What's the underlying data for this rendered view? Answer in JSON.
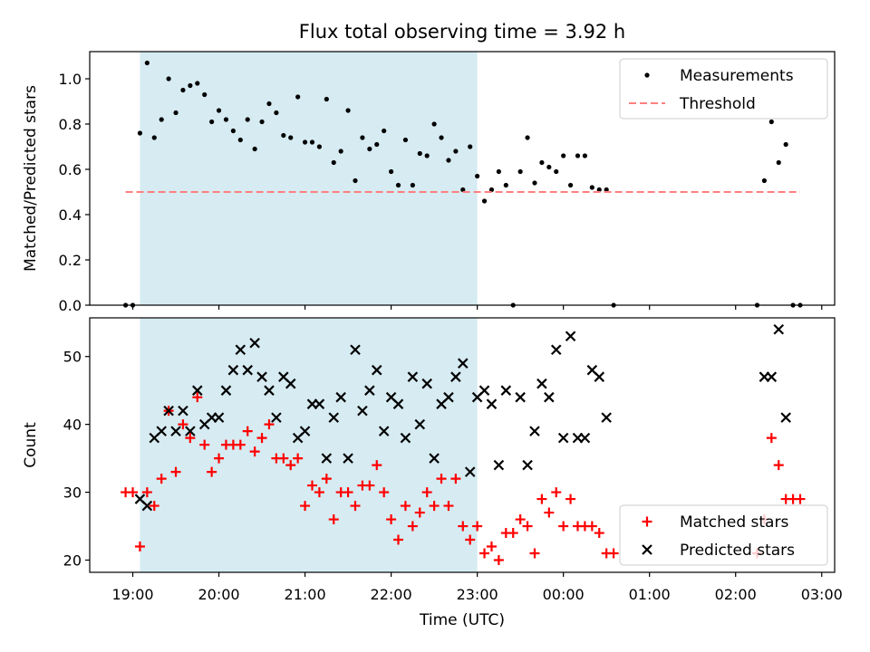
{
  "chart_data": {
    "title": "Flux total observing time = 3.92 h",
    "xlabel": "Time (UTC)",
    "x_tick_labels": [
      "19:00",
      "20:00",
      "21:00",
      "22:00",
      "23:00",
      "00:00",
      "01:00",
      "02:00",
      "03:00"
    ],
    "x_range_hours": [
      -0.5,
      8.15
    ],
    "shaded_span": {
      "start": "19:05",
      "end": "23:00",
      "color": "#add8e6"
    },
    "panels": [
      {
        "type": "scatter",
        "ylabel": "Matched/Predicted stars",
        "ylim": [
          0,
          1.12
        ],
        "y_ticks": [
          "0.0",
          "0.2",
          "0.4",
          "0.6",
          "0.8",
          "1.0"
        ],
        "y_tick_values": [
          0,
          0.2,
          0.4,
          0.6,
          0.8,
          1.0
        ],
        "legend_position": "top-right",
        "series": [
          {
            "name": "Measurements",
            "marker": "dot",
            "color": "#000000",
            "points": [
              [
                "18:55",
                0.0
              ],
              [
                "19:00",
                0.0
              ],
              [
                "19:05",
                0.76
              ],
              [
                "19:10",
                1.07
              ],
              [
                "19:15",
                0.74
              ],
              [
                "19:20",
                0.82
              ],
              [
                "19:25",
                1.0
              ],
              [
                "19:30",
                0.85
              ],
              [
                "19:35",
                0.95
              ],
              [
                "19:40",
                0.97
              ],
              [
                "19:45",
                0.98
              ],
              [
                "19:50",
                0.93
              ],
              [
                "19:55",
                0.81
              ],
              [
                "20:00",
                0.86
              ],
              [
                "20:05",
                0.82
              ],
              [
                "20:10",
                0.77
              ],
              [
                "20:15",
                0.73
              ],
              [
                "20:20",
                0.82
              ],
              [
                "20:25",
                0.69
              ],
              [
                "20:30",
                0.81
              ],
              [
                "20:35",
                0.89
              ],
              [
                "20:40",
                0.85
              ],
              [
                "20:45",
                0.75
              ],
              [
                "20:50",
                0.74
              ],
              [
                "20:55",
                0.92
              ],
              [
                "21:00",
                0.72
              ],
              [
                "21:05",
                0.72
              ],
              [
                "21:10",
                0.7
              ],
              [
                "21:15",
                0.91
              ],
              [
                "21:20",
                0.63
              ],
              [
                "21:25",
                0.68
              ],
              [
                "21:30",
                0.86
              ],
              [
                "21:35",
                0.55
              ],
              [
                "21:40",
                0.74
              ],
              [
                "21:45",
                0.69
              ],
              [
                "21:50",
                0.71
              ],
              [
                "21:55",
                0.77
              ],
              [
                "22:00",
                0.59
              ],
              [
                "22:05",
                0.53
              ],
              [
                "22:10",
                0.73
              ],
              [
                "22:15",
                0.53
              ],
              [
                "22:20",
                0.67
              ],
              [
                "22:25",
                0.66
              ],
              [
                "22:30",
                0.8
              ],
              [
                "22:35",
                0.74
              ],
              [
                "22:40",
                0.64
              ],
              [
                "22:45",
                0.68
              ],
              [
                "22:50",
                0.51
              ],
              [
                "22:55",
                0.7
              ],
              [
                "23:00",
                0.57
              ],
              [
                "23:05",
                0.46
              ],
              [
                "23:10",
                0.51
              ],
              [
                "23:15",
                0.59
              ],
              [
                "23:20",
                0.53
              ],
              [
                "23:25",
                0.0
              ],
              [
                "23:30",
                0.59
              ],
              [
                "23:35",
                0.74
              ],
              [
                "23:40",
                0.54
              ],
              [
                "23:45",
                0.63
              ],
              [
                "23:50",
                0.61
              ],
              [
                "23:55",
                0.59
              ],
              [
                "00:00",
                0.66
              ],
              [
                "00:05",
                0.53
              ],
              [
                "00:10",
                0.66
              ],
              [
                "00:15",
                0.66
              ],
              [
                "00:20",
                0.52
              ],
              [
                "00:25",
                0.51
              ],
              [
                "00:30",
                0.51
              ],
              [
                "00:35",
                0.0
              ],
              [
                "02:15",
                0.0
              ],
              [
                "02:20",
                0.55
              ],
              [
                "02:25",
                0.81
              ],
              [
                "02:30",
                0.63
              ],
              [
                "02:35",
                0.71
              ],
              [
                "02:40",
                0.0
              ],
              [
                "02:45",
                0.0
              ]
            ]
          },
          {
            "name": "Threshold",
            "type": "line",
            "style": "dashed",
            "color": "#ff7f7f",
            "y": 0.5,
            "x_start": "18:55",
            "x_end": "02:45"
          }
        ]
      },
      {
        "type": "scatter",
        "ylabel": "Count",
        "ylim": [
          18.2,
          55.7
        ],
        "y_ticks": [
          "20",
          "30",
          "40",
          "50"
        ],
        "y_tick_values": [
          20,
          30,
          40,
          50
        ],
        "legend_position": "bottom-right",
        "series": [
          {
            "name": "Matched stars",
            "marker": "plus",
            "color": "#ff0000",
            "points": [
              [
                "18:55",
                30
              ],
              [
                "19:00",
                30
              ],
              [
                "19:05",
                22
              ],
              [
                "19:10",
                30
              ],
              [
                "19:15",
                28
              ],
              [
                "19:20",
                32
              ],
              [
                "19:25",
                42
              ],
              [
                "19:30",
                33
              ],
              [
                "19:35",
                40
              ],
              [
                "19:40",
                38
              ],
              [
                "19:45",
                44
              ],
              [
                "19:50",
                37
              ],
              [
                "19:55",
                33
              ],
              [
                "20:00",
                35
              ],
              [
                "20:05",
                37
              ],
              [
                "20:10",
                37
              ],
              [
                "20:15",
                37
              ],
              [
                "20:20",
                39
              ],
              [
                "20:25",
                36
              ],
              [
                "20:30",
                38
              ],
              [
                "20:35",
                40
              ],
              [
                "20:40",
                35
              ],
              [
                "20:45",
                35
              ],
              [
                "20:50",
                34
              ],
              [
                "20:55",
                35
              ],
              [
                "21:00",
                28
              ],
              [
                "21:05",
                31
              ],
              [
                "21:10",
                30
              ],
              [
                "21:15",
                32
              ],
              [
                "21:20",
                26
              ],
              [
                "21:25",
                30
              ],
              [
                "21:30",
                30
              ],
              [
                "21:35",
                28
              ],
              [
                "21:40",
                31
              ],
              [
                "21:45",
                31
              ],
              [
                "21:50",
                34
              ],
              [
                "21:55",
                30
              ],
              [
                "22:00",
                26
              ],
              [
                "22:05",
                23
              ],
              [
                "22:10",
                28
              ],
              [
                "22:15",
                25
              ],
              [
                "22:20",
                27
              ],
              [
                "22:25",
                30
              ],
              [
                "22:30",
                28
              ],
              [
                "22:35",
                32
              ],
              [
                "22:40",
                28
              ],
              [
                "22:45",
                32
              ],
              [
                "22:50",
                25
              ],
              [
                "22:55",
                23
              ],
              [
                "23:00",
                25
              ],
              [
                "23:05",
                21
              ],
              [
                "23:10",
                22
              ],
              [
                "23:15",
                20
              ],
              [
                "23:20",
                24
              ],
              [
                "23:25",
                24
              ],
              [
                "23:30",
                26
              ],
              [
                "23:35",
                25
              ],
              [
                "23:40",
                21
              ],
              [
                "23:45",
                29
              ],
              [
                "23:50",
                27
              ],
              [
                "23:55",
                30
              ],
              [
                "00:00",
                25
              ],
              [
                "00:05",
                29
              ],
              [
                "00:10",
                25
              ],
              [
                "00:15",
                25
              ],
              [
                "00:20",
                25
              ],
              [
                "00:25",
                24
              ],
              [
                "00:30",
                21
              ],
              [
                "00:35",
                21
              ],
              [
                "02:15",
                21
              ],
              [
                "02:20",
                26
              ],
              [
                "02:25",
                38
              ],
              [
                "02:30",
                34
              ],
              [
                "02:35",
                29
              ],
              [
                "02:40",
                29
              ],
              [
                "02:45",
                29
              ]
            ]
          },
          {
            "name": "Predicted stars",
            "marker": "x",
            "color": "#000000",
            "points": [
              [
                "19:05",
                29
              ],
              [
                "19:10",
                28
              ],
              [
                "19:15",
                38
              ],
              [
                "19:20",
                39
              ],
              [
                "19:25",
                42
              ],
              [
                "19:30",
                39
              ],
              [
                "19:35",
                42
              ],
              [
                "19:40",
                39
              ],
              [
                "19:45",
                45
              ],
              [
                "19:50",
                40
              ],
              [
                "19:55",
                41
              ],
              [
                "20:00",
                41
              ],
              [
                "20:05",
                45
              ],
              [
                "20:10",
                48
              ],
              [
                "20:15",
                51
              ],
              [
                "20:20",
                48
              ],
              [
                "20:25",
                52
              ],
              [
                "20:30",
                47
              ],
              [
                "20:35",
                45
              ],
              [
                "20:40",
                41
              ],
              [
                "20:45",
                47
              ],
              [
                "20:50",
                46
              ],
              [
                "20:55",
                38
              ],
              [
                "21:00",
                39
              ],
              [
                "21:05",
                43
              ],
              [
                "21:10",
                43
              ],
              [
                "21:15",
                35
              ],
              [
                "21:20",
                41
              ],
              [
                "21:25",
                44
              ],
              [
                "21:30",
                35
              ],
              [
                "21:35",
                51
              ],
              [
                "21:40",
                42
              ],
              [
                "21:45",
                45
              ],
              [
                "21:50",
                48
              ],
              [
                "21:55",
                39
              ],
              [
                "22:00",
                44
              ],
              [
                "22:05",
                43
              ],
              [
                "22:10",
                38
              ],
              [
                "22:15",
                47
              ],
              [
                "22:20",
                40
              ],
              [
                "22:25",
                46
              ],
              [
                "22:30",
                35
              ],
              [
                "22:35",
                43
              ],
              [
                "22:40",
                44
              ],
              [
                "22:45",
                47
              ],
              [
                "22:50",
                49
              ],
              [
                "22:55",
                33
              ],
              [
                "23:00",
                44
              ],
              [
                "23:05",
                45
              ],
              [
                "23:10",
                43
              ],
              [
                "23:15",
                34
              ],
              [
                "23:20",
                45
              ],
              [
                "23:30",
                44
              ],
              [
                "23:35",
                34
              ],
              [
                "23:40",
                39
              ],
              [
                "23:45",
                46
              ],
              [
                "23:50",
                44
              ],
              [
                "23:55",
                51
              ],
              [
                "00:00",
                38
              ],
              [
                "00:05",
                53
              ],
              [
                "00:10",
                38
              ],
              [
                "00:15",
                38
              ],
              [
                "00:20",
                48
              ],
              [
                "00:25",
                47
              ],
              [
                "00:30",
                41
              ],
              [
                "02:20",
                47
              ],
              [
                "02:25",
                47
              ],
              [
                "02:30",
                54
              ],
              [
                "02:35",
                41
              ]
            ]
          }
        ]
      }
    ]
  }
}
